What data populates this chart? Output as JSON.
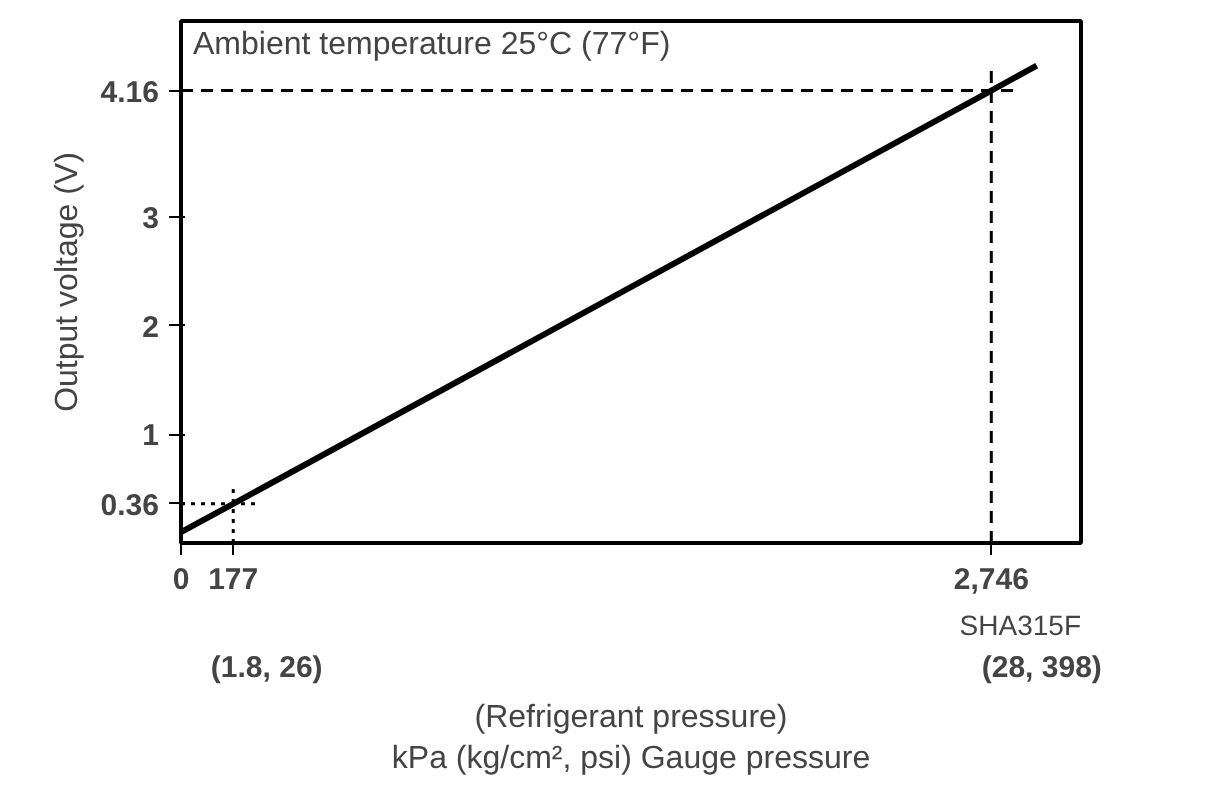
{
  "chart_data": {
    "type": "line",
    "title": "Ambient temperature 25°C (77°F)",
    "xlabel": "(Refrigerant pressure)\nkPa (kg/cm², psi) Gauge pressure",
    "ylabel": "Output voltage (V)",
    "x": [
      0,
      177,
      2746,
      2900
    ],
    "series": [
      {
        "color": "#000000",
        "values": [
          0.1,
          0.36,
          4.16,
          4.39
        ]
      }
    ],
    "xlim": [
      0,
      3050
    ],
    "ylim": [
      0,
      4.8
    ],
    "xticks": [
      0,
      177,
      {
        "value": 2746,
        "label": "2,746"
      }
    ],
    "yticks": [
      {
        "value": 0.36,
        "label": "0.36"
      },
      1,
      2,
      3,
      {
        "value": 4.16,
        "label": "4.16"
      }
    ],
    "ref_lines": [
      {
        "axis": "y",
        "value": 4.16,
        "line_style": "dashed"
      },
      {
        "axis": "x",
        "value": 2746,
        "line_style": "dashed"
      },
      {
        "axis": "y",
        "value": 0.36,
        "line_style": "dotted"
      },
      {
        "axis": "x",
        "value": 177,
        "line_style": "dotted"
      }
    ],
    "annotations": [
      "(1.8, 26)",
      "(28, 398)",
      "SHA315F"
    ],
    "grid": false,
    "marker": "none",
    "line_style": "solid"
  }
}
